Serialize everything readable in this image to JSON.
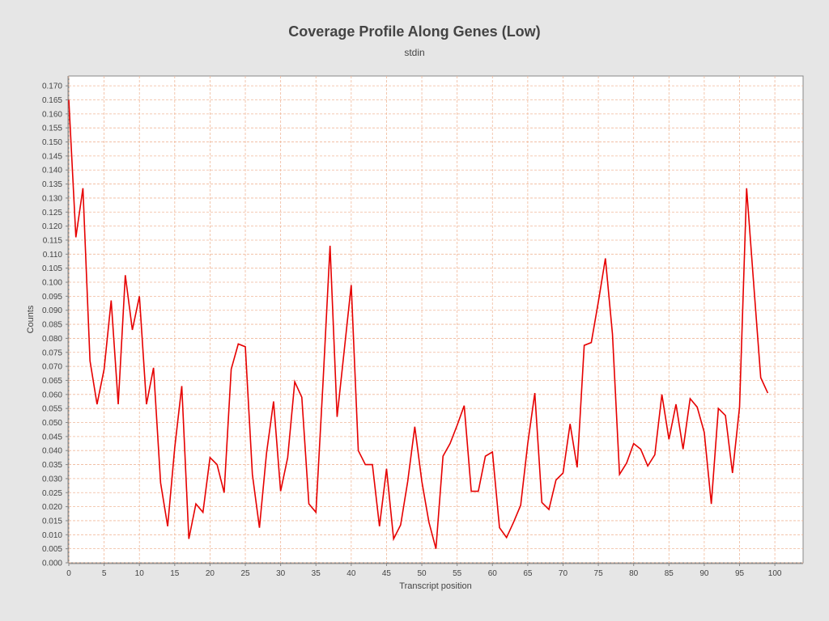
{
  "chart_data": {
    "type": "line",
    "title": "Coverage Profile Along Genes (Low)",
    "subtitle": "stdin",
    "xlabel": "Transcript position",
    "ylabel": "Counts",
    "xlim": [
      0,
      104
    ],
    "ylim": [
      0,
      0.1735
    ],
    "x_ticks": [
      0,
      5,
      10,
      15,
      20,
      25,
      30,
      35,
      40,
      45,
      50,
      55,
      60,
      65,
      70,
      75,
      80,
      85,
      90,
      95,
      100
    ],
    "y_ticks": [
      "0.000",
      "0.005",
      "0.010",
      "0.015",
      "0.020",
      "0.025",
      "0.030",
      "0.035",
      "0.040",
      "0.045",
      "0.050",
      "0.055",
      "0.060",
      "0.065",
      "0.070",
      "0.075",
      "0.080",
      "0.085",
      "0.090",
      "0.095",
      "0.100",
      "0.105",
      "0.110",
      "0.115",
      "0.120",
      "0.125",
      "0.130",
      "0.135",
      "0.140",
      "0.145",
      "0.150",
      "0.155",
      "0.160",
      "0.165",
      "0.170"
    ],
    "grid": true,
    "colors": {
      "line": "#e60000",
      "grid": "#f0b89a",
      "plot_bg": "#ffffff",
      "page_bg": "#e6e6e6"
    },
    "series": [
      {
        "values": [
          0.165,
          0.116,
          0.1335,
          0.072,
          0.0565,
          0.069,
          0.0935,
          0.0565,
          0.1025,
          0.083,
          0.095,
          0.0565,
          0.0695,
          0.0285,
          0.013,
          0.041,
          0.063,
          0.0085,
          0.021,
          0.018,
          0.0375,
          0.035,
          0.025,
          0.069,
          0.078,
          0.077,
          0.0315,
          0.0125,
          0.039,
          0.0575,
          0.0255,
          0.0375,
          0.0645,
          0.059,
          0.021,
          0.018,
          0.064,
          0.113,
          0.052,
          0.0755,
          0.099,
          0.04,
          0.035,
          0.035,
          0.013,
          0.0335,
          0.0085,
          0.0135,
          0.029,
          0.0485,
          0.029,
          0.0145,
          0.005,
          0.038,
          0.0425,
          0.049,
          0.056,
          0.0255,
          0.0255,
          0.038,
          0.0395,
          0.0125,
          0.009,
          0.0145,
          0.0205,
          0.0425,
          0.0605,
          0.0215,
          0.019,
          0.0295,
          0.032,
          0.0495,
          0.034,
          0.0775,
          0.0785,
          0.093,
          0.1085,
          0.0815,
          0.0315,
          0.0355,
          0.0425,
          0.0405,
          0.0345,
          0.0385,
          0.06,
          0.044,
          0.0565,
          0.0405,
          0.0585,
          0.0555,
          0.0465,
          0.021,
          0.055,
          0.0525,
          0.032,
          0.0555,
          0.1335,
          0.0995,
          0.066,
          0.0605
        ]
      }
    ]
  }
}
